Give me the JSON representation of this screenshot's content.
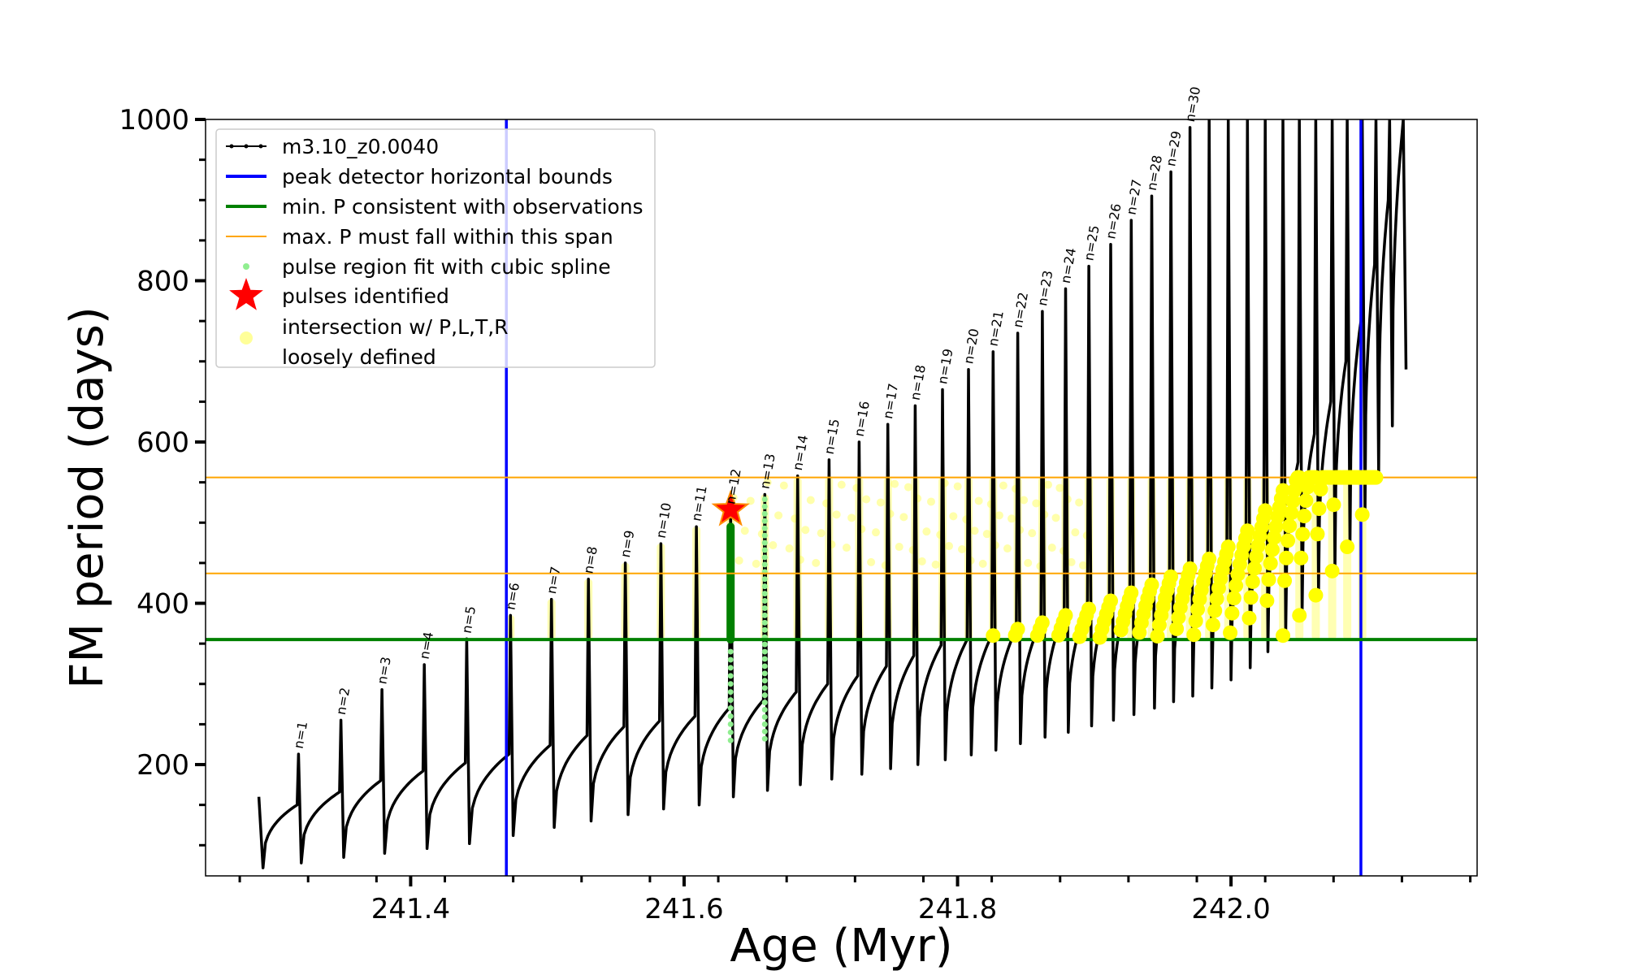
{
  "chart_data": {
    "type": "line",
    "xlabel": "Age (Myr)",
    "ylabel": "FM period (days)",
    "xlim": [
      241.25,
      242.18
    ],
    "ylim": [
      62,
      1000
    ],
    "xticks": [
      241.4,
      241.6,
      241.8,
      242.0
    ],
    "xtick_labels": [
      "241.4",
      "241.6",
      "241.8",
      "242.0"
    ],
    "yticks": [
      200,
      400,
      600,
      800,
      1000
    ],
    "ytick_labels": [
      "200",
      "400",
      "600",
      "800",
      "1000"
    ],
    "legend_position": "upper-left",
    "legend": [
      {
        "label": "m3.10_z0.0040",
        "style": "line-dots",
        "color": "#000000"
      },
      {
        "label": "peak detector horizontal bounds",
        "style": "line",
        "color": "#0000ff"
      },
      {
        "label": "min. P consistent with observations",
        "style": "line",
        "color": "#008000"
      },
      {
        "label": "max. P must fall within this span",
        "style": "thin-line",
        "color": "#ffa500"
      },
      {
        "label": "pulse region fit with cubic spline",
        "style": "dot",
        "color": "#90ee90"
      },
      {
        "label": "pulses identified",
        "style": "star",
        "color": "#ff0000"
      },
      {
        "label": "intersection w/ P,L,T,R\nloosely defined",
        "style": "circle",
        "color": "#ffff80"
      }
    ],
    "vertical_lines": {
      "color": "#0000ff",
      "x": [
        241.47,
        242.095
      ]
    },
    "min_period_line": {
      "color": "#008000",
      "y": 355
    },
    "max_period_span": {
      "color": "#ffa500",
      "y": [
        437,
        556
      ]
    },
    "pulse_labels": [
      "n=1",
      "n=2",
      "n=3",
      "n=4",
      "n=5",
      "n=6",
      "n=7",
      "n=8",
      "n=9",
      "n=10",
      "n=11",
      "n=12",
      "n=13",
      "n=14",
      "n=15",
      "n=16",
      "n=17",
      "n=18",
      "n=19",
      "n=20",
      "n=21",
      "n=22",
      "n=23",
      "n=24",
      "n=25",
      "n=26",
      "n=27",
      "n=28",
      "n=29",
      "n=30"
    ],
    "pulses": [
      {
        "age": 241.318,
        "peak": 213,
        "pre": 150,
        "min": 78
      },
      {
        "age": 241.349,
        "peak": 255,
        "pre": 166,
        "min": 85
      },
      {
        "age": 241.379,
        "peak": 293,
        "pre": 180,
        "min": 90
      },
      {
        "age": 241.41,
        "peak": 324,
        "pre": 192,
        "min": 96
      },
      {
        "age": 241.441,
        "peak": 356,
        "pre": 202,
        "min": 102
      },
      {
        "age": 241.473,
        "peak": 385,
        "pre": 213,
        "min": 112
      },
      {
        "age": 241.503,
        "peak": 405,
        "pre": 224,
        "min": 122
      },
      {
        "age": 241.53,
        "peak": 430,
        "pre": 236,
        "min": 130
      },
      {
        "age": 241.557,
        "peak": 450,
        "pre": 247,
        "min": 138
      },
      {
        "age": 241.583,
        "peak": 474,
        "pre": 254,
        "min": 145
      },
      {
        "age": 241.609,
        "peak": 495,
        "pre": 260,
        "min": 150
      },
      {
        "age": 241.634,
        "peak": 516,
        "pre": 270,
        "min": 160
      },
      {
        "age": 241.659,
        "peak": 535,
        "pre": 280,
        "min": 168
      },
      {
        "age": 241.683,
        "peak": 558,
        "pre": 290,
        "min": 175
      },
      {
        "age": 241.706,
        "peak": 578,
        "pre": 300,
        "min": 182
      },
      {
        "age": 241.728,
        "peak": 600,
        "pre": 310,
        "min": 188
      },
      {
        "age": 241.749,
        "peak": 622,
        "pre": 322,
        "min": 195
      },
      {
        "age": 241.769,
        "peak": 645,
        "pre": 335,
        "min": 200
      },
      {
        "age": 241.789,
        "peak": 665,
        "pre": 348,
        "min": 206
      },
      {
        "age": 241.808,
        "peak": 690,
        "pre": 355,
        "min": 212
      },
      {
        "age": 241.826,
        "peak": 712,
        "pre": 360,
        "min": 218
      },
      {
        "age": 241.844,
        "peak": 735,
        "pre": 368,
        "min": 226
      },
      {
        "age": 241.862,
        "peak": 762,
        "pre": 376,
        "min": 234
      },
      {
        "age": 241.879,
        "peak": 790,
        "pre": 385,
        "min": 240
      },
      {
        "age": 241.896,
        "peak": 818,
        "pre": 393,
        "min": 248
      },
      {
        "age": 241.912,
        "peak": 845,
        "pre": 403,
        "min": 255
      },
      {
        "age": 241.927,
        "peak": 875,
        "pre": 413,
        "min": 262
      },
      {
        "age": 241.942,
        "peak": 905,
        "pre": 423,
        "min": 270
      },
      {
        "age": 241.956,
        "peak": 935,
        "pre": 433,
        "min": 278
      },
      {
        "age": 241.97,
        "peak": 990,
        "pre": 443,
        "min": 285
      },
      {
        "age": 241.984,
        "peak": 1000,
        "pre": 455,
        "min": 295
      },
      {
        "age": 241.998,
        "peak": 1000,
        "pre": 470,
        "min": 305
      },
      {
        "age": 242.012,
        "peak": 1000,
        "pre": 490,
        "min": 320
      },
      {
        "age": 242.025,
        "peak": 1000,
        "pre": 515,
        "min": 340
      },
      {
        "age": 242.038,
        "peak": 1000,
        "pre": 540,
        "min": 360
      },
      {
        "age": 242.05,
        "peak": 1000,
        "pre": 575,
        "min": 385
      },
      {
        "age": 242.062,
        "peak": 1000,
        "pre": 610,
        "min": 410
      },
      {
        "age": 242.074,
        "peak": 1000,
        "pre": 650,
        "min": 440
      },
      {
        "age": 242.085,
        "peak": 1000,
        "pre": 700,
        "min": 470
      },
      {
        "age": 242.096,
        "peak": 1000,
        "pre": 750,
        "min": 510
      },
      {
        "age": 242.106,
        "peak": 1000,
        "pre": 820,
        "min": 560
      },
      {
        "age": 242.116,
        "peak": 1000,
        "pre": 900,
        "min": 620
      },
      {
        "age": 242.126,
        "peak": 1000,
        "pre": 980,
        "min": 690
      }
    ],
    "track_start": {
      "age": 241.289,
      "period": 160,
      "min": 72
    },
    "identified_pulse": {
      "age": 241.634,
      "period": 516
    },
    "spline_fit_regions": [
      {
        "age": 241.634,
        "ymin": 350,
        "ymax": 500,
        "dense": true
      },
      {
        "age": 241.659,
        "ymin": 232,
        "ymax": 530,
        "dense": false
      }
    ]
  }
}
